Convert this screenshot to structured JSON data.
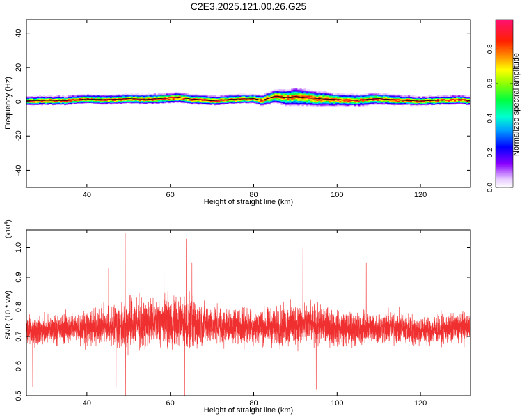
{
  "title": "C2E3.2025.121.00.26.G25",
  "colors": {
    "snr_line": "#f03030",
    "spectrogram_background": "#ffffff",
    "black_trace": "#000000"
  },
  "chart_data": [
    {
      "type": "heatmap",
      "xlabel": "Height of straight line (km)",
      "ylabel": "Frequency (Hz)",
      "xlim": [
        25.5,
        132
      ],
      "ylim": [
        -50,
        48
      ],
      "xticks": [
        40,
        60,
        80,
        100,
        120
      ],
      "yticks": [
        -40,
        -20,
        0,
        20,
        40
      ],
      "x_tick_labels": [
        "40",
        "60",
        "80",
        "100",
        "120"
      ],
      "y_tick_labels": [
        "-40",
        "-20",
        "0",
        "20",
        "40"
      ],
      "grid": false,
      "colormap": "rainbow (white → violet → blue → cyan → green → yellow → orange → red → pink)",
      "colorbar": {
        "label": "Normalized spectral amplitude",
        "range": [
          0,
          0.97
        ],
        "ticks": [
          0,
          0.2,
          0.4,
          0.6,
          0.8
        ],
        "tick_labels": [
          "0.0",
          "0.2",
          "0.4",
          "0.6",
          "0.8"
        ],
        "placement": "right"
      },
      "ridge_frequency": {
        "x": [
          25.5,
          30,
          35,
          40,
          45,
          50,
          55,
          60,
          62,
          65,
          70,
          75,
          80,
          82,
          85,
          88,
          90,
          95,
          100,
          105,
          108,
          110,
          115,
          120,
          125,
          130,
          132
        ],
        "y": [
          0.5,
          0.8,
          0.7,
          1.6,
          1.2,
          1.8,
          1.5,
          2.2,
          2.6,
          1.6,
          0.6,
          1.5,
          1.8,
          0.8,
          3.2,
          2.5,
          3.0,
          1.9,
          1.2,
          0.8,
          1.5,
          1.8,
          0.9,
          0.4,
          0.9,
          1.2,
          0.5
        ]
      },
      "band_halfwidth_hz": {
        "x": [
          25.5,
          40,
          60,
          80,
          85,
          90,
          95,
          100,
          110,
          120,
          132
        ],
        "values": [
          4,
          4,
          4.5,
          4,
          6,
          8,
          7,
          5.5,
          5,
          4,
          4
        ]
      }
    },
    {
      "type": "line",
      "xlabel": "Height of straight line (km)",
      "ylabel": "SNR (10 * v/v)",
      "y_multiplier": "(x10",
      "y_multiplier_exponent": "4",
      "y_multiplier_close": ")",
      "xlim": [
        25.5,
        132
      ],
      "ylim": [
        0.5,
        1.06
      ],
      "xticks": [
        40,
        60,
        80,
        100,
        120
      ],
      "yticks": [
        0.5,
        0.6,
        0.7,
        0.8,
        0.9,
        1.0
      ],
      "x_tick_labels": [
        "40",
        "60",
        "80",
        "100",
        "120"
      ],
      "y_tick_labels": [
        "0.5",
        "0.6",
        "0.7",
        "0.8",
        "0.9",
        "1.0"
      ],
      "grid": false,
      "series": [
        {
          "color": "#f03030",
          "trend_x": [
            25.5,
            30,
            35,
            40,
            45,
            50,
            55,
            60,
            65,
            70,
            75,
            80,
            85,
            90,
            95,
            100,
            105,
            110,
            115,
            120,
            125,
            132
          ],
          "trend_y": [
            0.72,
            0.72,
            0.73,
            0.73,
            0.735,
            0.74,
            0.745,
            0.75,
            0.745,
            0.74,
            0.735,
            0.735,
            0.73,
            0.74,
            0.735,
            0.73,
            0.725,
            0.73,
            0.73,
            0.72,
            0.725,
            0.73
          ],
          "envelope_x": [
            25.5,
            30,
            35,
            40,
            45,
            50,
            55,
            60,
            65,
            70,
            75,
            80,
            85,
            90,
            95,
            100,
            105,
            110,
            115,
            120,
            125,
            132
          ],
          "envelope_halfwidth": [
            0.07,
            0.07,
            0.075,
            0.08,
            0.09,
            0.13,
            0.11,
            0.12,
            0.13,
            0.09,
            0.085,
            0.09,
            0.09,
            0.11,
            0.1,
            0.085,
            0.08,
            0.08,
            0.08,
            0.07,
            0.07,
            0.07
          ],
          "peaks": [
            {
              "x": 49.2,
              "y": 1.05
            },
            {
              "x": 63.8,
              "y": 1.03
            },
            {
              "x": 50.8,
              "y": 0.98
            },
            {
              "x": 65.2,
              "y": 0.95
            },
            {
              "x": 91.8,
              "y": 1.0
            },
            {
              "x": 93.0,
              "y": 0.95
            },
            {
              "x": 58.5,
              "y": 0.96
            },
            {
              "x": 45.2,
              "y": 0.93
            },
            {
              "x": 107.0,
              "y": 0.95
            }
          ],
          "troughs": [
            {
              "x": 49.3,
              "y": 0.5
            },
            {
              "x": 63.5,
              "y": 0.5
            },
            {
              "x": 47.0,
              "y": 0.53
            },
            {
              "x": 27.0,
              "y": 0.53
            },
            {
              "x": 95.0,
              "y": 0.52
            },
            {
              "x": 82.0,
              "y": 0.55
            }
          ]
        }
      ]
    }
  ]
}
